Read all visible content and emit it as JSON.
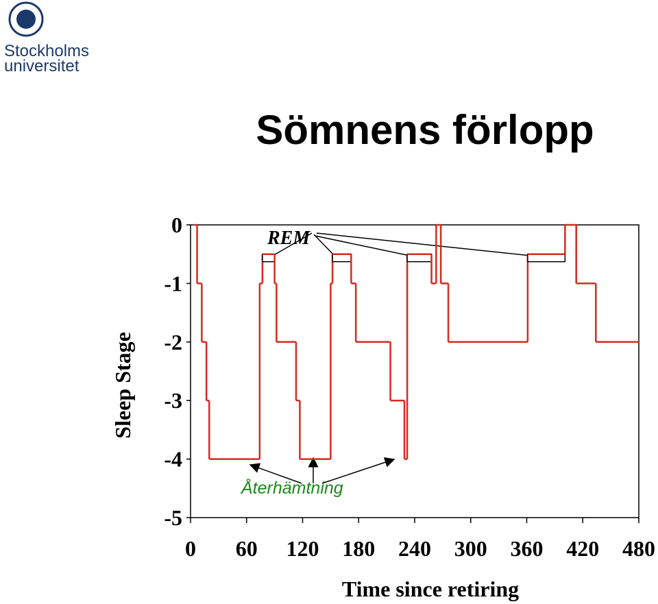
{
  "logo": {
    "lines": [
      "Stockholms",
      "universitet"
    ]
  },
  "chart_data": {
    "type": "line",
    "step": true,
    "title": "Sömnens förlopp",
    "xlabel": "Time since retiring",
    "ylabel": "Sleep Stage",
    "annotations": [
      "REM",
      "Återhämtning"
    ],
    "color": "#d42a20",
    "x": [
      3,
      7,
      12,
      17,
      20,
      74,
      77,
      90,
      92,
      113,
      117,
      150,
      152,
      172,
      177,
      214,
      229,
      232,
      258,
      263,
      268,
      276,
      361,
      401,
      413,
      434
    ],
    "values": [
      0,
      -1,
      -2,
      -3,
      -4,
      -1,
      -0.5,
      -1,
      -2,
      -3,
      -4,
      -1,
      -0.5,
      -1,
      -2,
      -3,
      -4,
      -0.5,
      -1,
      0,
      -1,
      -2,
      -0.5,
      0,
      -1,
      -2
    ],
    "xlim": [
      0,
      480
    ],
    "xticks": [
      0,
      60,
      120,
      180,
      240,
      300,
      360,
      420,
      480
    ],
    "ylim": [
      -5,
      0
    ],
    "yticks": [
      0,
      -1,
      -2,
      -3,
      -4,
      -5
    ]
  }
}
